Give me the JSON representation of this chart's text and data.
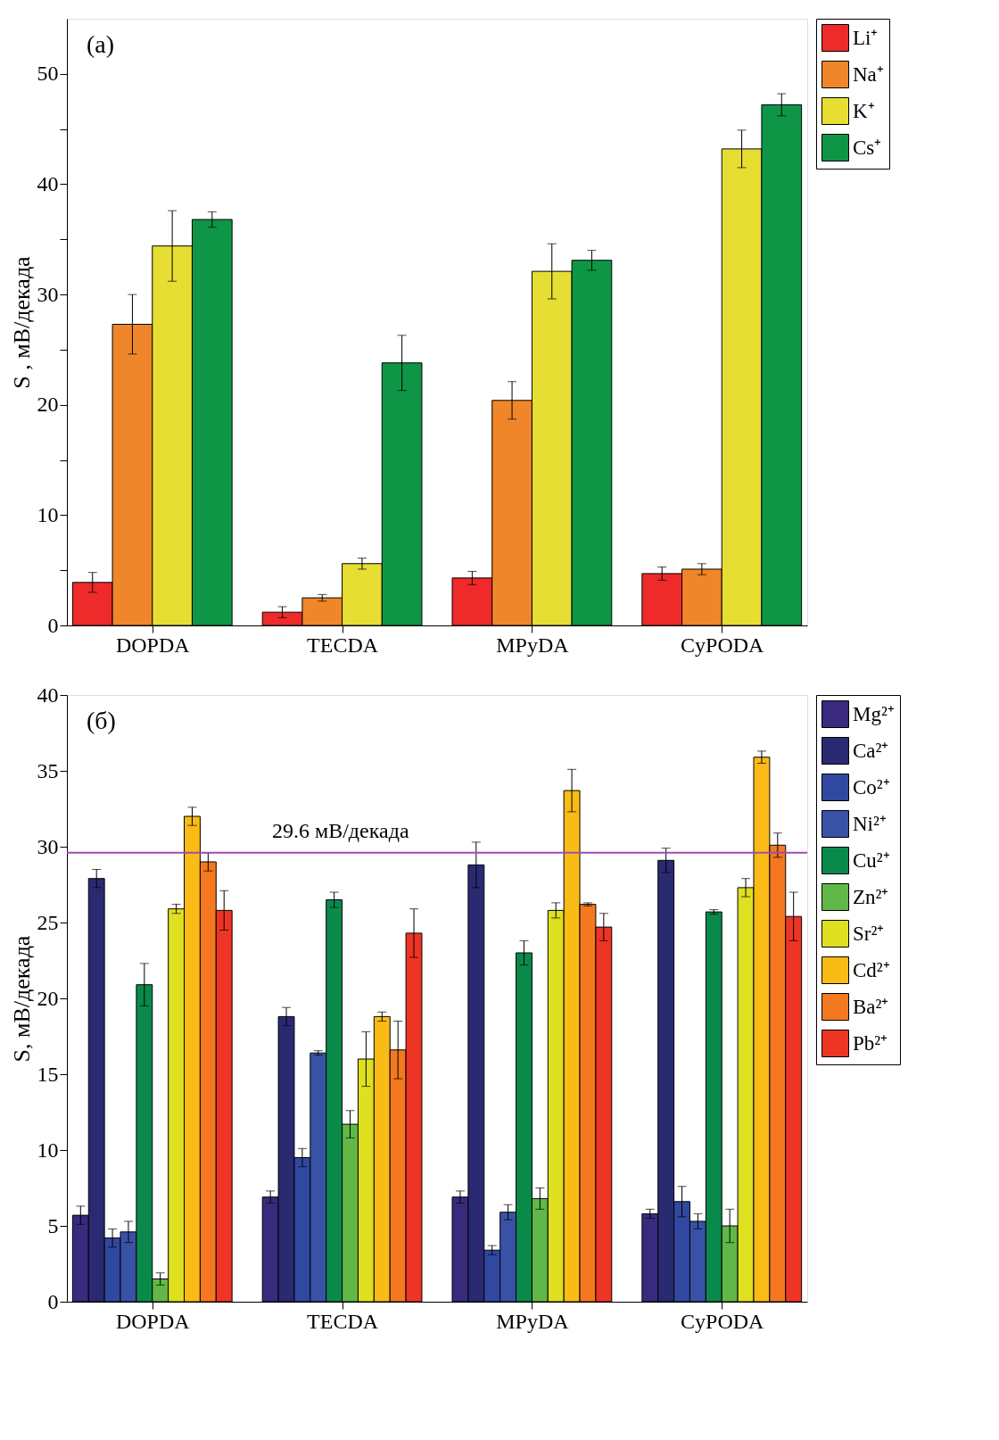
{
  "chart_data": [
    {
      "type": "bar",
      "ylabel": "S , мВ/декада",
      "annotations": [
        "(a)"
      ],
      "legend": "right",
      "grid": false,
      "categories": [
        "DOPDA",
        "TECDA",
        "MPyDA",
        "CyPODA"
      ],
      "ylim": [
        0,
        55
      ],
      "yticks": [
        0,
        {
          "value": 5,
          "label": null
        },
        10,
        {
          "value": 15,
          "label": null
        },
        20,
        {
          "value": 25,
          "label": null
        },
        30,
        {
          "value": 35,
          "label": null
        },
        40,
        {
          "value": 45,
          "label": null
        },
        50
      ],
      "series": [
        {
          "name": "Li⁺",
          "color": "#ee2a2a",
          "values": [
            3.9,
            1.2,
            4.3,
            4.7
          ],
          "errors": [
            0.9,
            0.5,
            0.6,
            0.6
          ]
        },
        {
          "name": "Na⁺",
          "color": "#f0862a",
          "values": [
            27.3,
            2.5,
            20.4,
            5.1
          ],
          "errors": [
            2.7,
            0.3,
            1.7,
            0.5
          ]
        },
        {
          "name": "K⁺",
          "color": "#e6de32",
          "values": [
            34.4,
            5.6,
            32.1,
            43.2
          ],
          "errors": [
            3.2,
            0.5,
            2.5,
            1.7
          ]
        },
        {
          "name": "Cs⁺",
          "color": "#0e9646",
          "values": [
            36.8,
            23.8,
            33.1,
            47.2
          ],
          "errors": [
            0.7,
            2.5,
            0.9,
            1.0
          ]
        }
      ]
    },
    {
      "type": "bar",
      "ylabel": "S, мВ/декада",
      "annotations": [
        "(б)"
      ],
      "legend": "right",
      "grid": false,
      "categories": [
        "DOPDA",
        "TECDA",
        "MPyDA",
        "CyPODA"
      ],
      "ylim": [
        0,
        40
      ],
      "yticks": [
        0,
        5,
        10,
        15,
        20,
        25,
        30,
        35,
        40
      ],
      "ref_lines": [
        {
          "axis": "y",
          "value": 29.6,
          "label": "29.6 мВ/декада",
          "color": "#a04cb0"
        }
      ],
      "series": [
        {
          "name": "Mg²⁺",
          "color": "#3a2a7e",
          "values": [
            5.7,
            6.9,
            6.9,
            5.8
          ],
          "errors": [
            0.6,
            0.4,
            0.4,
            0.3
          ]
        },
        {
          "name": "Ca²⁺",
          "color": "#2a2a72",
          "values": [
            27.9,
            18.8,
            28.8,
            29.1
          ],
          "errors": [
            0.6,
            0.6,
            1.5,
            0.8
          ]
        },
        {
          "name": "Co²⁺",
          "color": "#3048a0",
          "values": [
            4.2,
            9.5,
            3.4,
            6.6
          ],
          "errors": [
            0.6,
            0.6,
            0.3,
            1.0
          ]
        },
        {
          "name": "Ni²⁺",
          "color": "#3a52a6",
          "values": [
            4.6,
            16.4,
            5.9,
            5.3
          ],
          "errors": [
            0.7,
            0.15,
            0.5,
            0.5
          ]
        },
        {
          "name": "Cu²⁺",
          "color": "#0a8a4a",
          "values": [
            20.9,
            26.5,
            23.0,
            25.7
          ],
          "errors": [
            1.4,
            0.5,
            0.8,
            0.15
          ]
        },
        {
          "name": "Zn²⁺",
          "color": "#62b846",
          "values": [
            1.5,
            11.7,
            6.8,
            5.0
          ],
          "errors": [
            0.4,
            0.9,
            0.7,
            1.1
          ]
        },
        {
          "name": "Sr²⁺",
          "color": "#dfe020",
          "values": [
            25.9,
            16.0,
            25.8,
            27.3
          ],
          "errors": [
            0.3,
            1.8,
            0.5,
            0.6
          ]
        },
        {
          "name": "Cd²⁺",
          "color": "#fbbb16",
          "values": [
            32.0,
            18.8,
            33.7,
            35.9
          ],
          "errors": [
            0.6,
            0.3,
            1.4,
            0.4
          ]
        },
        {
          "name": "Ba²⁺",
          "color": "#f47820",
          "values": [
            29.0,
            16.6,
            26.2,
            30.1
          ],
          "errors": [
            0.6,
            1.9,
            0.1,
            0.8
          ]
        },
        {
          "name": "Pb²⁺",
          "color": "#ee3424",
          "values": [
            25.8,
            24.3,
            24.7,
            25.4
          ],
          "errors": [
            1.3,
            1.6,
            0.9,
            1.6
          ]
        }
      ]
    }
  ]
}
